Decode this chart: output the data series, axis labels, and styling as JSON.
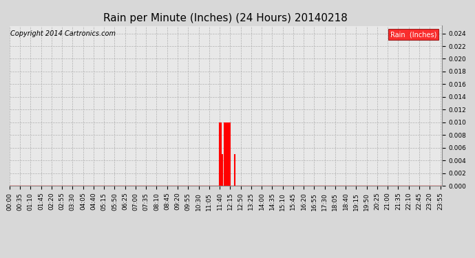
{
  "title": "Rain per Minute (Inches) (24 Hours) 20140218",
  "copyright_text": "Copyright 2014 Cartronics.com",
  "legend_label": "Rain  (Inches)",
  "ylim": [
    0,
    0.0252
  ],
  "yticks": [
    0.0,
    0.002,
    0.004,
    0.006,
    0.008,
    0.01,
    0.012,
    0.014,
    0.016,
    0.018,
    0.02,
    0.022,
    0.024
  ],
  "total_minutes": 1440,
  "background_color": "#d8d8d8",
  "plot_bg_color": "#e8e8e8",
  "line_color": "#ff0000",
  "grid_color": "#b0b0b0",
  "rain_events": [
    {
      "minute": 700,
      "value": 0.01
    },
    {
      "minute": 705,
      "value": 0.01
    },
    {
      "minute": 710,
      "value": 0.005
    },
    {
      "minute": 715,
      "value": 0.01
    },
    {
      "minute": 720,
      "value": 0.01
    },
    {
      "minute": 725,
      "value": 0.01
    },
    {
      "minute": 730,
      "value": 0.01
    },
    {
      "minute": 735,
      "value": 0.01
    },
    {
      "minute": 750,
      "value": 0.005
    }
  ],
  "x_tick_start": 0,
  "x_tick_interval": 35,
  "title_fontsize": 11,
  "tick_fontsize": 6.5,
  "copyright_fontsize": 7
}
